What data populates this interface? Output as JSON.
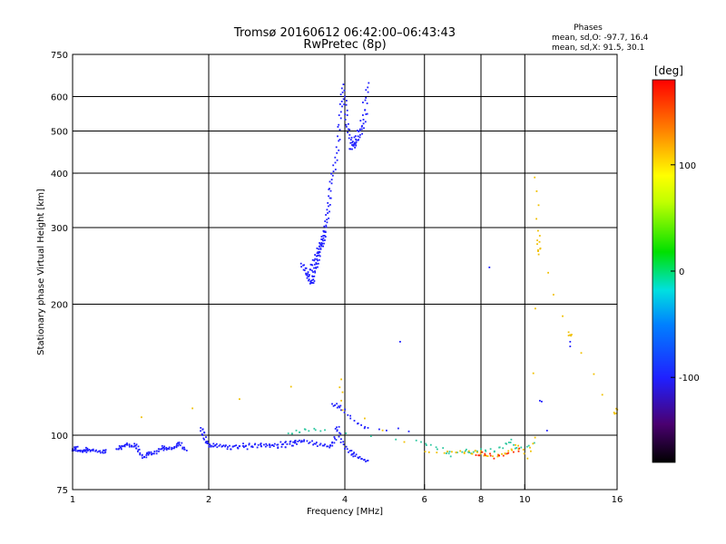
{
  "chart_data": {
    "type": "scatter",
    "title": "Tromsø 20160612 06:42:00–06:43:43",
    "subtitle": "RwPretec (8p)",
    "xlabel": "Frequency [MHz]",
    "ylabel": "Stationary phase Virtual Height [km]",
    "x_scale": "log",
    "y_scale": "log",
    "xlim": [
      1,
      16
    ],
    "ylim": [
      75,
      750
    ],
    "x_ticks": [
      1,
      2,
      4,
      6,
      8,
      10,
      16
    ],
    "y_ticks": [
      75,
      100,
      200,
      300,
      400,
      500,
      600,
      750
    ],
    "grid": true,
    "colorbar": {
      "label": "[deg]",
      "ticks": [
        "100",
        "0",
        "-100"
      ],
      "tick_values": [
        100,
        0,
        -100
      ],
      "range": [
        -180,
        180
      ]
    },
    "phases_header": "Phases",
    "phase_stats": [
      "mean, sd,O: -97.7, 16.4",
      "mean, sd,X:  91.5, 30.1"
    ],
    "traces": [
      {
        "phase": -100,
        "points": [
          [
            1.0,
            93
          ],
          [
            1.01,
            92.5
          ],
          [
            1.02,
            94
          ],
          [
            1.03,
            91.5
          ],
          [
            1.05,
            92
          ],
          [
            1.06,
            92.5
          ],
          [
            1.07,
            93
          ],
          [
            1.08,
            92
          ],
          [
            1.1,
            91.8
          ],
          [
            1.12,
            92.5
          ],
          [
            1.15,
            92
          ],
          [
            1.17,
            91.5
          ],
          [
            1.19,
            92.2
          ]
        ]
      },
      {
        "phase": -100,
        "points": [
          [
            1.25,
            93
          ],
          [
            1.27,
            94
          ],
          [
            1.29,
            93.5
          ],
          [
            1.31,
            94.5
          ],
          [
            1.33,
            95.5
          ],
          [
            1.35,
            94.5
          ],
          [
            1.37,
            95
          ],
          [
            1.39,
            94
          ],
          [
            1.4,
            92
          ],
          [
            1.42,
            90
          ],
          [
            1.44,
            89
          ],
          [
            1.46,
            90.5
          ],
          [
            1.48,
            91
          ],
          [
            1.5,
            90
          ],
          [
            1.53,
            91.5
          ],
          [
            1.55,
            93
          ],
          [
            1.58,
            94
          ],
          [
            1.6,
            93
          ],
          [
            1.62,
            92.5
          ],
          [
            1.65,
            93.5
          ],
          [
            1.68,
            94
          ],
          [
            1.7,
            95
          ],
          [
            1.73,
            96
          ],
          [
            1.76,
            93
          ],
          [
            1.78,
            92.5
          ]
        ]
      },
      {
        "phase": -100,
        "points": [
          [
            1.92,
            104
          ],
          [
            1.94,
            102
          ],
          [
            1.96,
            99
          ],
          [
            1.98,
            96
          ],
          [
            2.0,
            95.5
          ],
          [
            2.02,
            94.5
          ],
          [
            2.05,
            95
          ],
          [
            2.1,
            94.5
          ],
          [
            2.15,
            94
          ],
          [
            2.2,
            94.5
          ],
          [
            2.3,
            94.8
          ],
          [
            2.4,
            95
          ],
          [
            2.5,
            94.8
          ],
          [
            2.6,
            95
          ],
          [
            2.7,
            95.2
          ],
          [
            2.8,
            95.5
          ],
          [
            2.9,
            95.8
          ],
          [
            3.0,
            96
          ],
          [
            3.1,
            96.5
          ],
          [
            3.2,
            97
          ],
          [
            3.25,
            97.5
          ]
        ]
      },
      {
        "phase": -100,
        "points": [
          [
            2.2,
            93
          ],
          [
            2.3,
            94
          ],
          [
            2.45,
            93.5
          ],
          [
            2.6,
            93.8
          ],
          [
            2.75,
            94.5
          ],
          [
            2.9,
            94
          ],
          [
            3.05,
            95
          ],
          [
            3.15,
            96
          ]
        ]
      },
      {
        "phase": -100,
        "points": [
          [
            3.3,
            97
          ],
          [
            3.4,
            96
          ],
          [
            3.5,
            95
          ],
          [
            3.6,
            94.5
          ],
          [
            3.7,
            94
          ],
          [
            3.75,
            96
          ],
          [
            3.8,
            98
          ],
          [
            3.86,
            105
          ],
          [
            3.9,
            100
          ],
          [
            3.95,
            96
          ],
          [
            4.05,
            93
          ],
          [
            4.15,
            91
          ],
          [
            4.2,
            90
          ],
          [
            4.3,
            88.5
          ],
          [
            4.4,
            88
          ],
          [
            4.5,
            87.5
          ]
        ]
      },
      {
        "phase": -100,
        "points": [
          [
            3.2,
            248
          ],
          [
            3.25,
            243
          ],
          [
            3.3,
            237
          ],
          [
            3.32,
            230
          ],
          [
            3.35,
            226
          ],
          [
            3.38,
            224
          ],
          [
            3.4,
            227
          ],
          [
            3.42,
            233
          ],
          [
            3.44,
            240
          ],
          [
            3.46,
            246
          ],
          [
            3.48,
            252
          ],
          [
            3.5,
            259
          ],
          [
            3.52,
            264
          ],
          [
            3.54,
            270
          ],
          [
            3.56,
            274
          ],
          [
            3.58,
            280
          ],
          [
            3.6,
            287
          ],
          [
            3.62,
            296
          ],
          [
            3.64,
            306
          ],
          [
            3.66,
            320
          ],
          [
            3.68,
            336
          ],
          [
            3.7,
            352
          ],
          [
            3.72,
            371
          ],
          [
            3.75,
            392
          ],
          [
            3.8,
            416
          ],
          [
            3.84,
            445
          ],
          [
            3.87,
            480
          ],
          [
            3.9,
            520
          ],
          [
            3.93,
            565
          ],
          [
            3.95,
            605
          ],
          [
            3.97,
            640
          ]
        ]
      },
      {
        "phase": -100,
        "points": [
          [
            3.3,
            233
          ],
          [
            3.36,
            240
          ],
          [
            3.4,
            248
          ],
          [
            3.45,
            256
          ],
          [
            3.5,
            268
          ],
          [
            3.55,
            282
          ],
          [
            3.6,
            294
          ]
        ]
      },
      {
        "phase": -100,
        "points": [
          [
            4.0,
            600
          ],
          [
            4.02,
            560
          ],
          [
            4.05,
            520
          ],
          [
            4.08,
            500
          ],
          [
            4.12,
            480
          ],
          [
            4.15,
            470
          ],
          [
            4.2,
            465
          ],
          [
            4.25,
            470
          ],
          [
            4.3,
            480
          ],
          [
            4.35,
            500
          ],
          [
            4.4,
            520
          ],
          [
            4.45,
            550
          ],
          [
            4.48,
            600
          ],
          [
            4.5,
            640
          ]
        ]
      },
      {
        "phase": -100,
        "points": [
          [
            4.1,
            455
          ],
          [
            4.18,
            460
          ],
          [
            4.25,
            490
          ],
          [
            4.35,
            510
          ],
          [
            4.42,
            580
          ]
        ]
      },
      {
        "phase": -100,
        "points": [
          [
            8.35,
            243
          ]
        ]
      },
      {
        "phase": -100,
        "points": [
          [
            5.3,
            164
          ]
        ]
      },
      {
        "phase": -100,
        "points": [
          [
            10.8,
            120
          ],
          [
            10.9,
            119.5
          ]
        ]
      },
      {
        "phase": -100,
        "points": [
          [
            11.2,
            102.5
          ]
        ]
      },
      {
        "phase": -100,
        "points": [
          [
            12.6,
            160
          ],
          [
            12.6,
            164
          ]
        ]
      },
      {
        "phase": -100,
        "points": [
          [
            3.75,
            118
          ],
          [
            3.85,
            117
          ],
          [
            3.95,
            115
          ],
          [
            4.1,
            110
          ],
          [
            4.3,
            106
          ],
          [
            4.5,
            104
          ],
          [
            5.5,
            102.5
          ]
        ]
      },
      {
        "phase": 0,
        "points": [
          [
            3.0,
            101
          ],
          [
            3.15,
            102
          ],
          [
            3.35,
            103
          ],
          [
            3.6,
            102
          ],
          [
            5.8,
            97
          ],
          [
            6.2,
            95
          ],
          [
            6.7,
            92
          ],
          [
            6.9,
            90
          ],
          [
            7.4,
            92
          ],
          [
            7.6,
            91
          ],
          [
            8.0,
            93
          ],
          [
            8.5,
            92
          ],
          [
            9.0,
            94
          ],
          [
            9.3,
            97
          ],
          [
            9.6,
            93
          ],
          [
            10.5,
            96
          ]
        ]
      },
      {
        "phase": 100,
        "points": [
          [
            1.42,
            110
          ],
          [
            3.9,
            135
          ],
          [
            3.98,
            115
          ],
          [
            6.0,
            91
          ],
          [
            6.8,
            91.5
          ],
          [
            7.2,
            92
          ],
          [
            7.6,
            91
          ],
          [
            7.9,
            92
          ],
          [
            8.2,
            89
          ],
          [
            8.8,
            90
          ],
          [
            9.2,
            92
          ],
          [
            9.6,
            95
          ],
          [
            10.2,
            89
          ],
          [
            10.5,
            98
          ],
          [
            10.6,
            390
          ],
          [
            10.7,
            295
          ],
          [
            10.75,
            270
          ],
          [
            10.8,
            262
          ],
          [
            12.6,
            168
          ],
          [
            12.6,
            172
          ],
          [
            15.8,
            112
          ],
          [
            15.9,
            115
          ]
        ]
      },
      {
        "phase": 160,
        "points": [
          [
            7.8,
            90
          ],
          [
            8.1,
            91
          ],
          [
            8.6,
            89
          ],
          [
            9.1,
            90
          ],
          [
            9.8,
            93
          ]
        ]
      }
    ]
  }
}
